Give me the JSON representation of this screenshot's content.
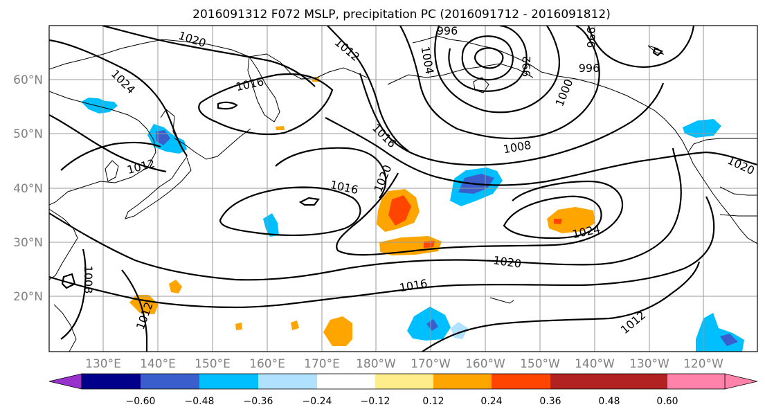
{
  "title": "2016091312 F072 MSLP, precipitation PC (2016091712 - 2016091812)",
  "lat_labels": [
    "60°N",
    "50°N",
    "40°N",
    "30°N",
    "20°N"
  ],
  "lon_labels": [
    "130°E",
    "140°E",
    "150°E",
    "160°E",
    "170°E",
    "180°W",
    "170°W",
    "160°W",
    "150°W",
    "140°W",
    "130°W",
    "120°W"
  ],
  "isobar_labels": [
    "1020",
    "996",
    "1012",
    "996",
    "996",
    "1024",
    "1016",
    "1004",
    "992",
    "1000",
    "1016",
    "1008",
    "1012",
    "1020",
    "1016",
    "1020",
    "1024",
    "1020",
    "1016",
    "1008",
    "1012",
    "1012"
  ],
  "colorbar": {
    "tick_labels": [
      "−0.60",
      "−0.48",
      "−0.36",
      "−0.24",
      "−0.12",
      "0.12",
      "0.24",
      "0.36",
      "0.48",
      "0.60"
    ],
    "colors": [
      "#9932cc",
      "#00008b",
      "#3a5fcd",
      "#00bfff",
      "#b0e2ff",
      "#ffffff",
      "#ffec8b",
      "#ffa500",
      "#ff4500",
      "#b22222",
      "#ff82ab"
    ]
  }
}
